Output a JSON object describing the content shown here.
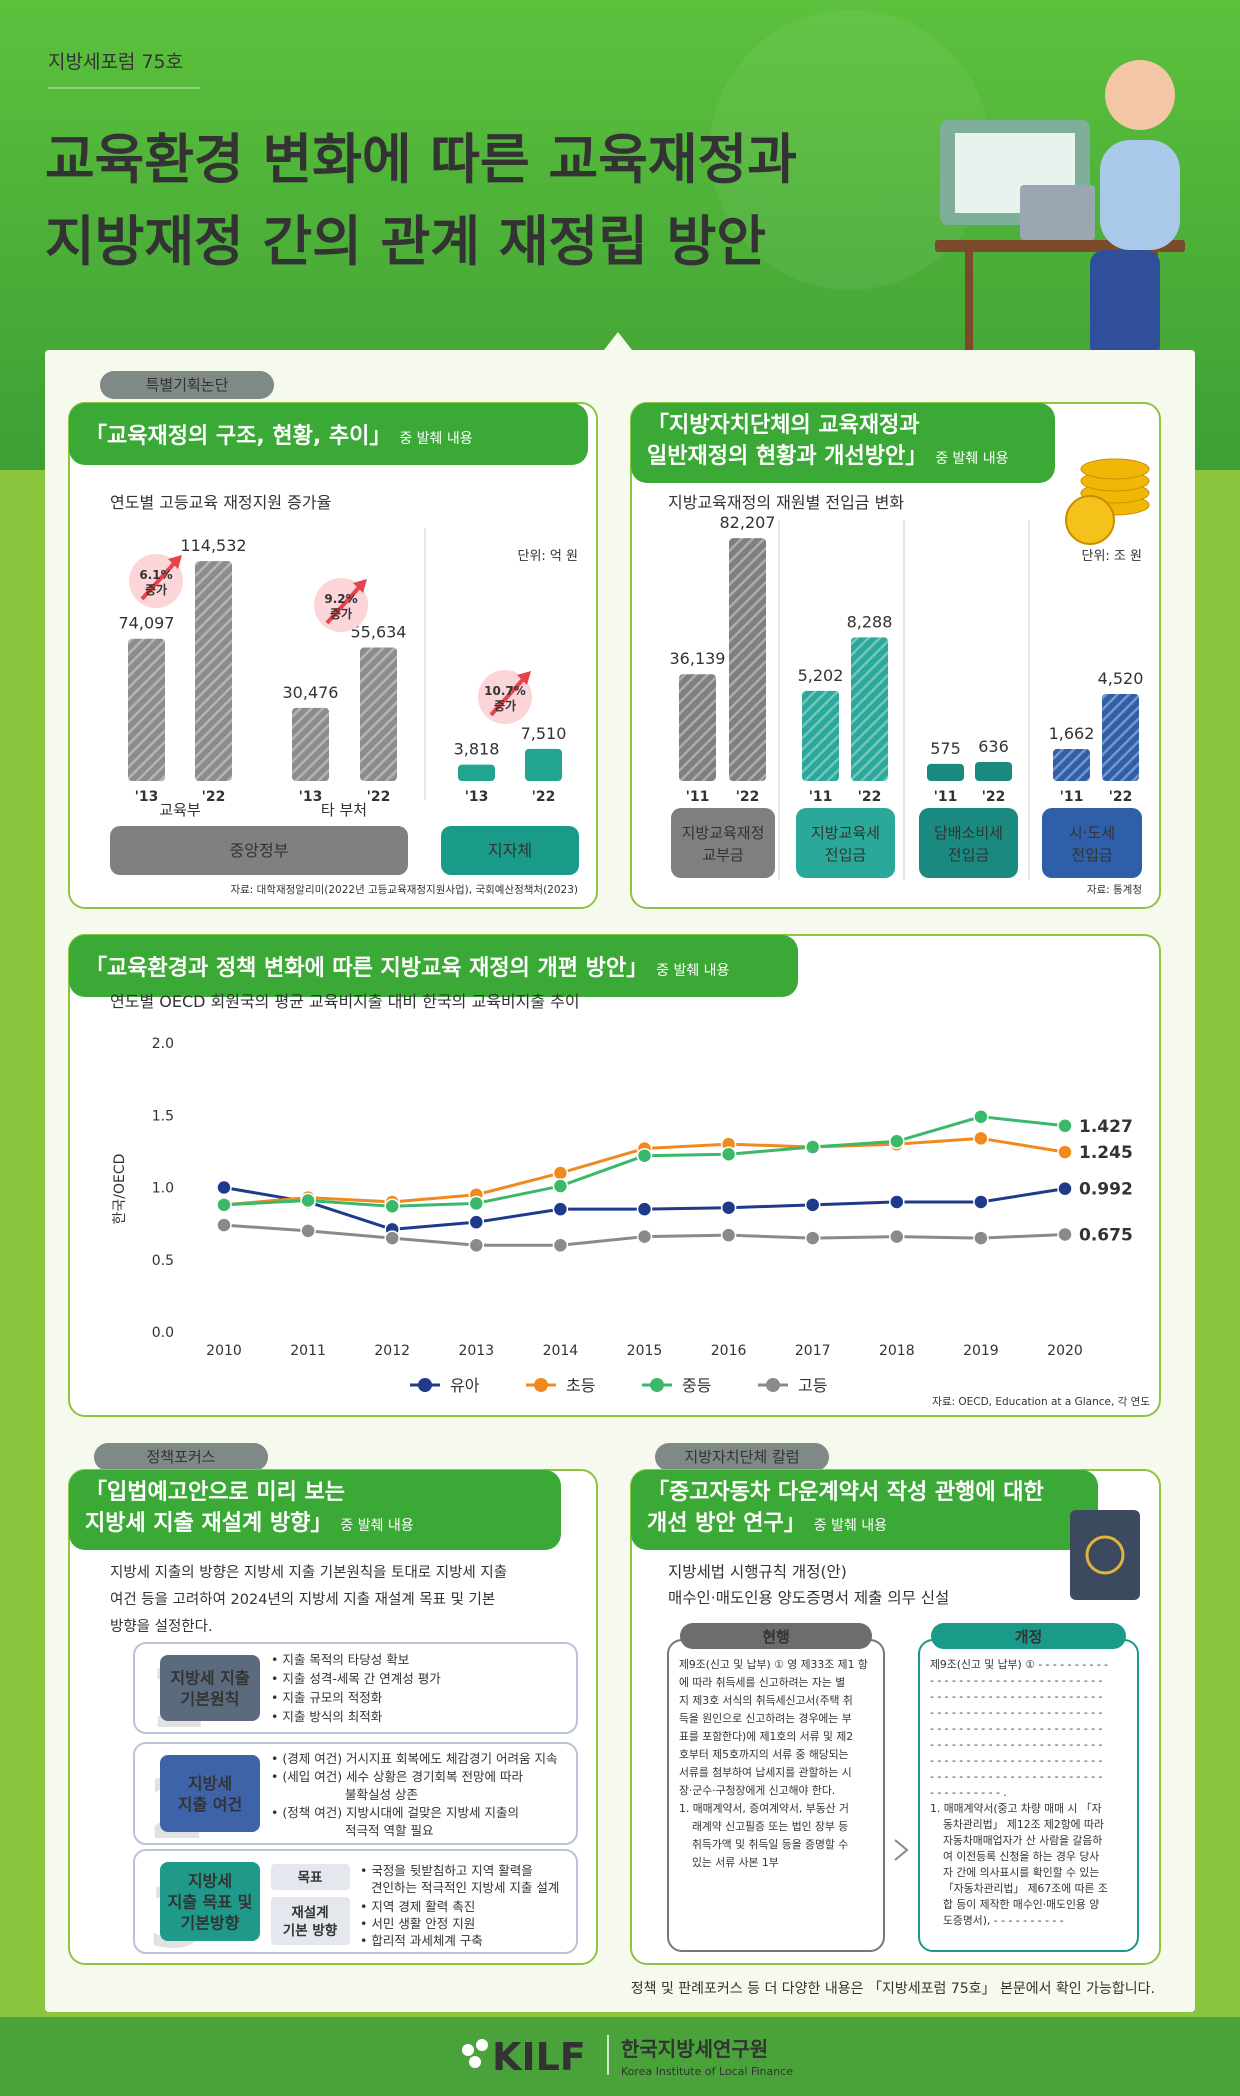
{
  "header": {
    "issue": "지방세포럼 75호",
    "title": [
      "교육환경 변화에 따른 교육재정과",
      "지방재정 간의 관계 재정립 방안"
    ]
  },
  "tags": [
    "특별기획논단",
    "정책포커스",
    "지방자치단체 칼럼"
  ],
  "chart_data": [
    {
      "type": "grouped_bar",
      "title": [
        "「교육재정의 구조, 현황, 추이」"
      ],
      "title_suffix": "중 발췌 내용",
      "subtitle": "연도별 고등교육 재정지원 증가율",
      "unit": "단위: 억 원",
      "categories": [
        "'13",
        "'22"
      ],
      "groups": [
        {
          "name": "교육부",
          "values": [
            74097,
            114532
          ],
          "value_labels": [
            "74,097",
            "114,532"
          ],
          "growth": [
            "6.1%",
            "증가"
          ],
          "ylim": [
            0,
            125000
          ],
          "color": "#8c8c8c",
          "hatched": true
        },
        {
          "name": "타 부처",
          "values": [
            30476,
            55634
          ],
          "value_labels": [
            "30,476",
            "55,634"
          ],
          "growth": [
            "9.2%",
            "증가"
          ],
          "ylim": [
            0,
            100000
          ],
          "color": "#8c8c8c",
          "hatched": true
        },
        {
          "name": null,
          "values": [
            3818,
            7510
          ],
          "value_labels": [
            "3,818",
            "7,510"
          ],
          "growth": [
            "10.7%",
            "증가"
          ],
          "ylim": [
            0,
            56000
          ],
          "color": "#22a58f",
          "hatched": false
        }
      ],
      "sections": [
        {
          "label": "중앙정부",
          "color": "#808080"
        },
        {
          "label": "지자체",
          "color": "#1a9a88"
        }
      ],
      "source": "자료: 대학재정알리미(2022년 고등교육재정지원사업), 국회예산정책처(2023)"
    },
    {
      "type": "grouped_bar",
      "title": [
        "「지방자치단체의 교육재정과",
        "일반재정의 현황과 개선방안」"
      ],
      "title_suffix": "중 발췌 내용",
      "subtitle": "지방교육재정의 재원별 전입금 변화",
      "unit": "단위: 조 원",
      "categories": [
        "'11",
        "'22"
      ],
      "groups": [
        {
          "name": [
            "지방교육재정",
            "교부금"
          ],
          "values": [
            36139,
            82207
          ],
          "value_labels": [
            "36,139",
            "82,207"
          ],
          "ylim": [
            0,
            88000
          ],
          "color": "#7f7f7f",
          "hatched": true
        },
        {
          "name": [
            "지방교육세",
            "전입금"
          ],
          "values": [
            5202,
            8288
          ],
          "value_labels": [
            "5,202",
            "8,288"
          ],
          "ylim": [
            0,
            15000
          ],
          "color": "#2aa89a",
          "hatched": true
        },
        {
          "name": [
            "담배소비세",
            "전입금"
          ],
          "values": [
            575,
            636
          ],
          "ylim": [
            0,
            8700
          ],
          "color": "#1a8a80",
          "hatched": false
        },
        {
          "name": [
            "시·도세",
            "전입금"
          ],
          "values": [
            1662,
            4520
          ],
          "value_labels": [
            "1,662",
            "4,520"
          ],
          "ylim": [
            0,
            13500
          ],
          "color": "#2e5fa8",
          "hatched": true
        }
      ],
      "source": "자료: 통계청"
    },
    {
      "type": "line",
      "title": [
        "「교육환경과 정책 변화에 따른 지방교육 재정의 개편 방안」"
      ],
      "title_suffix": "중 발췌 내용",
      "subtitle": "연도별 OECD 회원국의 평균 교육비지출 대비 한국의 교육비지출 추이",
      "y_label": "한국/OECD",
      "x": [
        2010,
        2011,
        2012,
        2013,
        2014,
        2015,
        2016,
        2017,
        2018,
        2019,
        2020
      ],
      "xlim": [
        2010,
        2020
      ],
      "xticks": [
        2010,
        2011,
        2012,
        2013,
        2014,
        2015,
        2016,
        2017,
        2018,
        2019,
        2020
      ],
      "ylim": [
        0,
        2
      ],
      "yticks": [
        {
          "value": 0,
          "label": "0.0"
        },
        0.5,
        {
          "value": 1,
          "label": "1.0"
        },
        1.5,
        {
          "value": 2,
          "label": "2.0"
        }
      ],
      "grid": false,
      "legend": "bottom",
      "series": [
        {
          "name": "유아",
          "color": "#1f3a8a",
          "values": [
            1.0,
            0.9,
            0.71,
            0.76,
            0.85,
            0.85,
            0.86,
            0.88,
            0.9,
            0.9,
            0.992
          ]
        },
        {
          "name": "초등",
          "color": "#f08a1e",
          "values": [
            0.88,
            0.93,
            0.9,
            0.95,
            1.1,
            1.27,
            1.3,
            1.28,
            1.3,
            1.34,
            1.245
          ]
        },
        {
          "name": "중등",
          "color": "#3cb86a",
          "values": [
            0.88,
            0.91,
            0.87,
            0.89,
            1.01,
            1.22,
            1.23,
            1.28,
            1.32,
            1.49,
            1.427
          ]
        },
        {
          "name": "고등",
          "color": "#8a8a8a",
          "values": [
            0.74,
            0.7,
            0.65,
            0.6,
            0.6,
            0.66,
            0.67,
            0.65,
            0.66,
            0.65,
            0.675
          ]
        }
      ],
      "source": "자료: OECD,  Education at a Glance, 각 연도"
    }
  ],
  "policy": {
    "title": [
      "「입법예고안으로 미리 보는",
      "지방세 지출 재설계 방향」"
    ],
    "title_suffix": "중 발췌 내용",
    "intro": [
      "지방세 지출의 방향은 지방세 지출 기본원칙을 토대로 지방세 지출",
      "여건 등을 고려하여 2024년의 지방세 지출 재설계 목표 및 기본",
      "방향을 설정한다."
    ],
    "items": [
      {
        "number": "1",
        "label": [
          "지방세 지출",
          "기본원칙"
        ],
        "color": "#5b6b7d",
        "bullets": [
          "• 지출 목적의 타당성 확보",
          "• 지출 성격-세목 간 연계성 평가",
          "• 지출 규모의 적정화",
          "• 지출 방식의 최적화"
        ]
      },
      {
        "number": "2",
        "label": [
          "지방세",
          "지출 여건"
        ],
        "color": "#3e63a8",
        "bullets": [
          "• (경제 여건) 거시지표 회복에도 체감경기 어려움 지속",
          "• (세입 여건) 세수 상황은 경기회복 전망에 따라",
          "불확실성 상존",
          "• (정책 여건) 지방시대에 걸맞은 지방세 지출의",
          "적극적 역할 필요"
        ]
      },
      {
        "number": "3",
        "label": [
          "지방세",
          "지출 목표 및",
          "기본방향"
        ],
        "color": "#1f9a8a",
        "rows": [
          {
            "label": [
              "목표"
            ],
            "bullets": [
              "• 국정을 뒷받침하고 지역 활력을",
              "견인하는 적극적인 지방세 지출 설계"
            ]
          },
          {
            "label": [
              "재설계",
              "기본 방향"
            ],
            "bullets": [
              "• 지역 경제 활력 촉진",
              "• 서민 생활 안정 지원",
              "• 합리적 과세체계 구축"
            ]
          }
        ]
      }
    ]
  },
  "column": {
    "title": [
      "「중고자동차 다운계약서 작성 관행에 대한",
      "개선 방안 연구」"
    ],
    "title_suffix": "중 발췌 내용",
    "subtitle": [
      "지방세법 시행규칙 개정(안)",
      "매수인·매도인용 양도증명서 제출 의무 신설"
    ],
    "current": {
      "label": "현행",
      "lines": [
        "제9조(신고 및 납부) ① 영 제33조 제1 항",
        "에 따라 취득세를 신고하려는 자는 별",
        "지 제3호 서식의 취득세신고서(주택 취",
        "득을 원인으로 신고하려는 경우에는 부",
        "표를 포함한다)에 제1호의 서류 및 제2",
        "호부터 제5호까지의 서류 중 해당되는",
        "서류를 첨부하여 납세지를 관할하는 시",
        "장·군수·구청장에게 신고해야 한다.",
        "1. 매매계약서, 증여계약서, 부동산 거",
        "래계약 신고필증 또는 법인 장부 등",
        "취득가액 및 취득일 등을 증명할 수",
        "있는 서류 사본 1부"
      ]
    },
    "revised": {
      "label": "개정",
      "lines": [
        "제9조(신고 및 납부) ① - - - - - - - - - -",
        "- - - - - - - - - - - - - - - - - - - - - - - -",
        "- - - - - - - - - - - - - - - - - - - - - - - -",
        "- - - - - - - - - - - - - - - - - - - - - - - -",
        "- - - - - - - - - - - - - - - - - - - - - - - -",
        "- - - - - - - - - - - - - - - - - - - - - - - -",
        "- - - - - - - - - - - - - - - - - - - - - - - -",
        "- - - - - - - - - - - - - - - - - - - - - - - -",
        "- - - - - - - - - - .",
        "1. 매매계약서(중고 차량 매매 시 「자",
        "동차관리법」 제12조 제2항에 따라",
        "자동차매매업자가 산 사람을 갈음하",
        "여 이전등록 신청을 하는 경우 당사",
        "자 간에 의사표시를 확인할 수 있는",
        "「자동차관리법」 제67조에 따른 조",
        "합 등이 제작한 매수인·매도인용 양",
        "도증명서), - - - - - - - - - -"
      ]
    }
  },
  "footer": {
    "note": "정책 및 판례포커스 등 더 다양한 내용은 「지방세포럼 75호」 본문에서 확인 가능합니다.",
    "logo": "KILF",
    "org": "한국지방세연구원",
    "org_en": "Korea Institute of Local Finance"
  }
}
